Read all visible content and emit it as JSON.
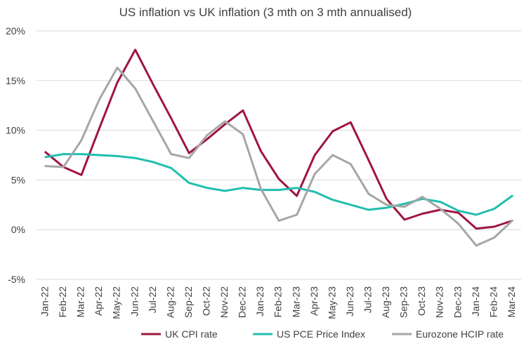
{
  "chart_data": {
    "type": "line",
    "title": "US inflation vs UK inflation (3 mth on 3 mth annualised)",
    "xlabel": "",
    "ylabel": "",
    "categories": [
      "Jan-22",
      "Feb-22",
      "Mar-22",
      "Apr-22",
      "May-22",
      "Jun-22",
      "Jul-22",
      "Aug-22",
      "Sep-22",
      "Oct-22",
      "Nov-22",
      "Dec-22",
      "Jan-23",
      "Feb-23",
      "Mar-23",
      "Apr-23",
      "May-23",
      "Jun-23",
      "Jul-23",
      "Aug-23",
      "Sep-23",
      "Oct-23",
      "Nov-23",
      "Dec-23",
      "Jan-24",
      "Feb-24",
      "Mar-24"
    ],
    "yticks": [
      "20%",
      "15%",
      "10%",
      "5%",
      "0%",
      "-5%"
    ],
    "ylim": [
      -5,
      20
    ],
    "grid": true,
    "legend_position": "bottom",
    "series": [
      {
        "name": "UK CPI rate",
        "color": "#a0153e",
        "values": [
          7.8,
          6.3,
          5.5,
          10.2,
          14.8,
          18.1,
          14.6,
          11.2,
          7.7,
          9.1,
          10.6,
          12.0,
          7.9,
          5.1,
          3.4,
          7.5,
          9.9,
          10.8,
          7.0,
          3.1,
          1.0,
          1.6,
          2.0,
          1.7,
          0.1,
          0.3,
          0.9
        ]
      },
      {
        "name": "US PCE Price Index",
        "color": "#1fbfb0",
        "values": [
          7.3,
          7.6,
          7.6,
          7.5,
          7.4,
          7.2,
          6.8,
          6.2,
          4.7,
          4.2,
          3.9,
          4.2,
          4.0,
          4.0,
          4.2,
          3.8,
          3.0,
          2.5,
          2.0,
          2.2,
          2.6,
          3.1,
          2.8,
          1.9,
          1.5,
          2.1,
          3.4
        ]
      },
      {
        "name": "Eurozone HCIP rate",
        "color": "#a6a6a6",
        "values": [
          6.4,
          6.3,
          9.0,
          13.1,
          16.3,
          14.2,
          10.9,
          7.6,
          7.2,
          9.5,
          10.9,
          9.6,
          4.1,
          0.9,
          1.5,
          5.6,
          7.5,
          6.6,
          3.6,
          2.5,
          2.3,
          3.3,
          2.1,
          0.6,
          -1.6,
          -0.8,
          0.9
        ]
      }
    ]
  }
}
